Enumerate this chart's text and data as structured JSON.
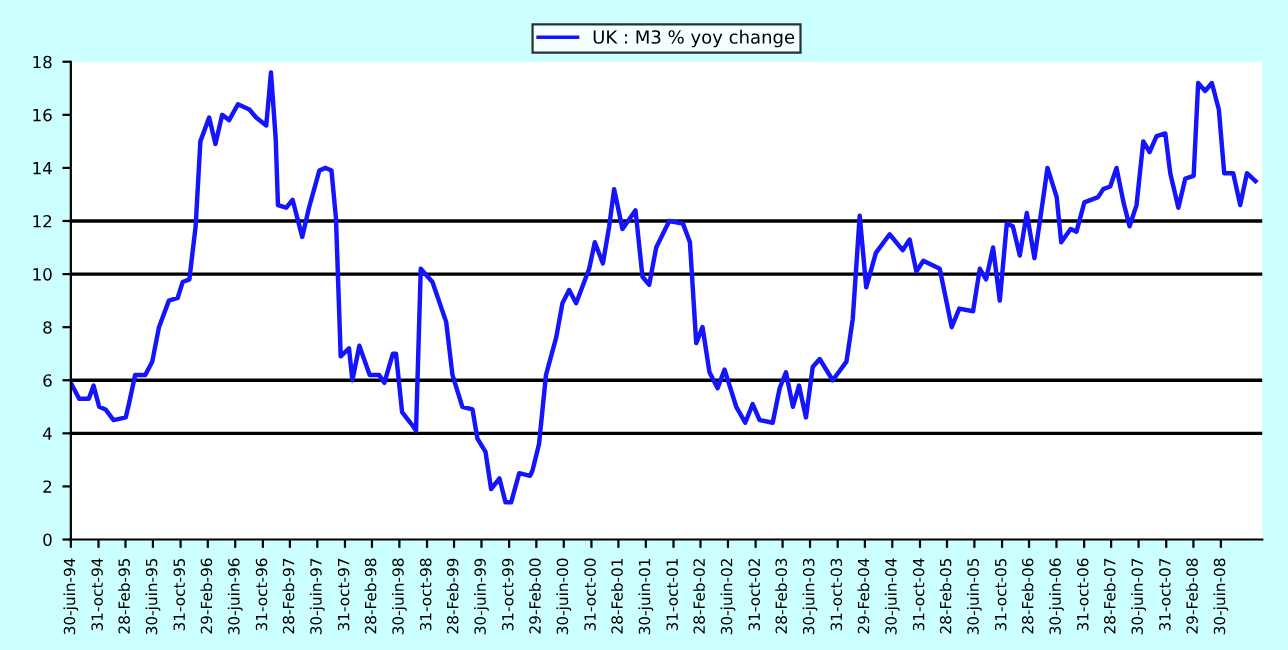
{
  "chart_data": {
    "type": "line",
    "legend": "top",
    "grid": false,
    "marker": "none",
    "line_style": "solid",
    "ylim": [
      0,
      18
    ],
    "yticks": [
      0,
      2,
      4,
      6,
      8,
      10,
      12,
      14,
      16,
      18
    ],
    "xlim": [
      "1994-06-30",
      "2008-12-31"
    ],
    "xticks": [
      {
        "value": "1994-06-30",
        "label": "30-juin-94"
      },
      {
        "value": "1994-10-31",
        "label": "31-oct-94"
      },
      {
        "value": "1995-02-28",
        "label": "28-Feb-95"
      },
      {
        "value": "1995-06-30",
        "label": "30-juin-95"
      },
      {
        "value": "1995-10-31",
        "label": "31-oct-95"
      },
      {
        "value": "1996-02-29",
        "label": "29-Feb-96"
      },
      {
        "value": "1996-06-30",
        "label": "30-juin-96"
      },
      {
        "value": "1996-10-31",
        "label": "31-oct-96"
      },
      {
        "value": "1997-02-28",
        "label": "28-Feb-97"
      },
      {
        "value": "1997-06-30",
        "label": "30-juin-97"
      },
      {
        "value": "1997-10-31",
        "label": "31-oct-97"
      },
      {
        "value": "1998-02-28",
        "label": "28-Feb-98"
      },
      {
        "value": "1998-06-30",
        "label": "30-juin-98"
      },
      {
        "value": "1998-10-31",
        "label": "31-oct-98"
      },
      {
        "value": "1999-02-28",
        "label": "28-Feb-99"
      },
      {
        "value": "1999-06-30",
        "label": "30-juin-99"
      },
      {
        "value": "1999-10-31",
        "label": "31-oct-99"
      },
      {
        "value": "2000-02-29",
        "label": "29-Feb-00"
      },
      {
        "value": "2000-06-30",
        "label": "30-juin-00"
      },
      {
        "value": "2000-10-31",
        "label": "31-oct-00"
      },
      {
        "value": "2001-02-28",
        "label": "28-Feb-01"
      },
      {
        "value": "2001-06-30",
        "label": "30-juin-01"
      },
      {
        "value": "2001-10-31",
        "label": "31-oct-01"
      },
      {
        "value": "2002-02-28",
        "label": "28-Feb-02"
      },
      {
        "value": "2002-06-30",
        "label": "30-juin-02"
      },
      {
        "value": "2002-10-31",
        "label": "31-oct-02"
      },
      {
        "value": "2003-02-28",
        "label": "28-Feb-03"
      },
      {
        "value": "2003-06-30",
        "label": "30-juin-03"
      },
      {
        "value": "2003-10-31",
        "label": "31-oct-03"
      },
      {
        "value": "2004-02-29",
        "label": "29-Feb-04"
      },
      {
        "value": "2004-06-30",
        "label": "30-juin-04"
      },
      {
        "value": "2004-10-31",
        "label": "31-oct-04"
      },
      {
        "value": "2005-02-28",
        "label": "28-Feb-05"
      },
      {
        "value": "2005-06-30",
        "label": "30-juin-05"
      },
      {
        "value": "2005-10-31",
        "label": "31-oct-05"
      },
      {
        "value": "2006-02-28",
        "label": "28-Feb-06"
      },
      {
        "value": "2006-06-30",
        "label": "30-juin-06"
      },
      {
        "value": "2006-10-31",
        "label": "31-oct-06"
      },
      {
        "value": "2007-02-28",
        "label": "28-Feb-07"
      },
      {
        "value": "2007-06-30",
        "label": "30-juin-07"
      },
      {
        "value": "2007-10-31",
        "label": "31-oct-07"
      },
      {
        "value": "2008-02-29",
        "label": "29-Feb-08"
      },
      {
        "value": "2008-06-30",
        "label": "30-juin-08"
      }
    ],
    "ref_lines": [
      {
        "axis": "y",
        "value": 4,
        "color": "#000000"
      },
      {
        "axis": "y",
        "value": 6,
        "color": "#000000"
      },
      {
        "axis": "y",
        "value": 10,
        "color": "#000000"
      },
      {
        "axis": "y",
        "value": 12,
        "color": "#000000"
      }
    ],
    "series": [
      {
        "name": "UK : M3 % yoy change",
        "color": "#1414ff",
        "x": [
          "1994-06-30",
          "1994-08-06",
          "1994-09-18",
          "1994-10-09",
          "1994-11-03",
          "1994-12-01",
          "1995-01-06",
          "1995-03-01",
          "1995-03-15",
          "1995-04-12",
          "1995-05-27",
          "1995-06-27",
          "1995-07-27",
          "1995-09-09",
          "1995-10-18",
          "1995-11-09",
          "1995-12-09",
          "1996-01-06",
          "1996-01-27",
          "1996-03-06",
          "1996-04-03",
          "1996-05-03",
          "1996-06-03",
          "1996-07-12",
          "1996-09-01",
          "1996-10-01",
          "1996-11-15",
          "1996-12-06",
          "1996-12-27",
          "1997-01-06",
          "1997-02-12",
          "1997-03-12",
          "1997-04-24",
          "1997-05-24",
          "1997-07-09",
          "1997-08-06",
          "1997-09-01",
          "1997-09-21",
          "1997-10-06",
          "1997-10-12",
          "1997-11-18",
          "1997-12-03",
          "1998-01-03",
          "1998-02-18",
          "1998-04-01",
          "1998-04-24",
          "1998-06-01",
          "1998-06-15",
          "1998-07-12",
          "1998-08-27",
          "1998-09-12",
          "1998-10-03",
          "1998-11-24",
          "1999-01-24",
          "1999-02-21",
          "1999-04-06",
          "1999-05-21",
          "1999-06-12",
          "1999-07-18",
          "1999-08-12",
          "1999-09-18",
          "1999-10-15",
          "1999-11-09",
          "1999-12-15",
          "2000-02-01",
          "2000-02-12",
          "2000-03-12",
          "2000-04-12",
          "2000-05-27",
          "2000-06-24",
          "2000-07-24",
          "2000-08-24",
          "2000-10-21",
          "2000-11-15",
          "2000-12-21",
          "2001-01-18",
          "2001-02-09",
          "2001-03-18",
          "2001-05-15",
          "2001-06-15",
          "2001-07-15",
          "2001-08-15",
          "2001-10-12",
          "2001-12-12",
          "2002-01-12",
          "2002-02-09",
          "2002-03-09",
          "2002-04-09",
          "2002-05-15",
          "2002-06-15",
          "2002-08-06",
          "2002-09-15",
          "2002-10-18",
          "2002-11-18",
          "2003-01-15",
          "2003-02-15",
          "2003-03-15",
          "2003-04-15",
          "2003-05-12",
          "2003-06-12",
          "2003-07-12",
          "2003-08-12",
          "2003-10-09",
          "2003-12-09",
          "2004-01-06",
          "2004-02-06",
          "2004-03-06",
          "2004-04-18",
          "2004-06-18",
          "2004-08-15",
          "2004-09-15",
          "2004-10-15",
          "2004-11-15",
          "2005-01-27",
          "2005-03-21",
          "2005-04-24",
          "2005-06-24",
          "2005-07-24",
          "2005-08-21",
          "2005-09-21",
          "2005-10-21",
          "2005-11-21",
          "2005-12-18",
          "2006-01-18",
          "2006-02-18",
          "2006-03-24",
          "2006-05-01",
          "2006-05-21",
          "2006-07-01",
          "2006-07-21",
          "2006-09-01",
          "2006-09-27",
          "2006-11-01",
          "2007-01-01",
          "2007-01-24",
          "2007-02-24",
          "2007-03-24",
          "2007-04-24",
          "2007-05-21",
          "2007-06-21",
          "2007-07-21",
          "2007-08-18",
          "2007-09-18",
          "2007-10-27",
          "2007-11-18",
          "2007-12-24",
          "2008-01-24",
          "2008-03-01",
          "2008-03-21",
          "2008-04-21",
          "2008-05-21",
          "2008-06-21",
          "2008-07-15",
          "2008-08-24",
          "2008-09-24",
          "2008-10-24",
          "2008-12-01"
        ],
        "values": [
          5.9,
          5.3,
          5.3,
          5.8,
          5.0,
          4.9,
          4.5,
          4.6,
          5.1,
          6.2,
          6.2,
          6.7,
          8.0,
          9.0,
          9.1,
          9.7,
          9.8,
          11.8,
          15.0,
          15.9,
          14.9,
          16.0,
          15.8,
          16.4,
          16.2,
          15.9,
          15.6,
          17.6,
          15.1,
          12.6,
          12.5,
          12.8,
          11.4,
          12.5,
          13.9,
          14.0,
          13.9,
          12.1,
          8.4,
          6.9,
          7.2,
          6.0,
          7.3,
          6.2,
          6.2,
          5.9,
          7.0,
          7.0,
          4.8,
          4.3,
          4.1,
          10.2,
          9.7,
          8.2,
          6.2,
          5.0,
          4.9,
          3.8,
          3.3,
          1.9,
          2.3,
          1.4,
          1.4,
          2.5,
          2.4,
          2.6,
          3.6,
          6.2,
          7.6,
          8.9,
          9.4,
          8.9,
          10.2,
          11.2,
          10.4,
          11.8,
          13.2,
          11.7,
          12.4,
          9.9,
          9.6,
          11.0,
          12.0,
          11.9,
          11.2,
          7.4,
          8.0,
          6.3,
          5.7,
          6.4,
          5.0,
          4.4,
          5.1,
          4.5,
          4.4,
          5.7,
          6.3,
          5.0,
          5.8,
          4.6,
          6.5,
          6.8,
          6.0,
          6.7,
          8.3,
          12.2,
          9.5,
          10.8,
          11.5,
          10.9,
          11.3,
          10.1,
          10.5,
          10.2,
          8.0,
          8.7,
          8.6,
          10.2,
          9.8,
          11.0,
          9.0,
          11.9,
          11.8,
          10.7,
          12.3,
          10.6,
          12.8,
          14.0,
          12.9,
          11.2,
          11.7,
          11.6,
          12.7,
          12.9,
          13.2,
          13.3,
          14.0,
          12.7,
          11.8,
          12.6,
          15.0,
          14.6,
          15.2,
          15.3,
          13.8,
          12.5,
          13.6,
          13.7,
          17.2,
          16.9,
          17.2,
          16.2,
          13.8,
          13.8,
          12.6,
          13.8,
          13.5
        ]
      }
    ]
  }
}
